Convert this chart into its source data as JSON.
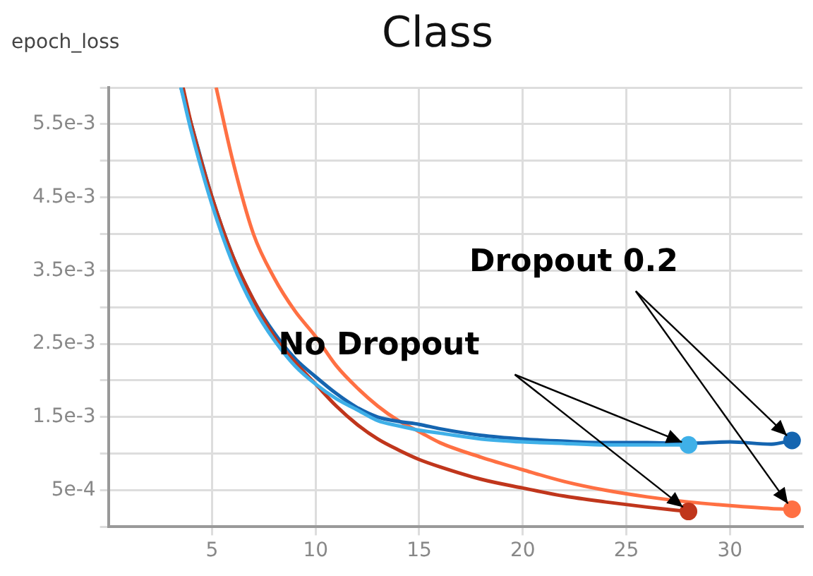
{
  "chart_data": {
    "type": "line",
    "title": "Class",
    "ylabel": "epoch_loss",
    "xlim": [
      0,
      33.5
    ],
    "xticks": [
      5,
      10,
      15,
      20,
      25,
      30
    ],
    "ylim": [
      0,
      0.006
    ],
    "yticks": [
      {
        "value": 0,
        "label": null
      },
      {
        "value": 0.0005,
        "label": "5e-4"
      },
      {
        "value": 0.001,
        "label": null
      },
      {
        "value": 0.0015,
        "label": "1.5e-3"
      },
      {
        "value": 0.002,
        "label": null
      },
      {
        "value": 0.0025,
        "label": "2.5e-3"
      },
      {
        "value": 0.003,
        "label": null
      },
      {
        "value": 0.0035,
        "label": "3.5e-3"
      },
      {
        "value": 0.004,
        "label": null
      },
      {
        "value": 0.0045,
        "label": "4.5e-3"
      },
      {
        "value": 0.005,
        "label": null
      },
      {
        "value": 0.0055,
        "label": "5.5e-3"
      },
      {
        "value": 0.006,
        "label": null
      }
    ],
    "grid": true,
    "legend": false,
    "annotations": [
      {
        "text": "No Dropout",
        "x": 28,
        "y": 0.00112
      },
      {
        "text": "Dropout 0.2",
        "x": 33,
        "y": 0.00118
      }
    ],
    "series": [
      {
        "color": "#3fb0e8",
        "x": [
          3.5,
          4,
          5,
          6,
          7,
          8,
          9,
          10,
          11,
          12,
          13,
          14,
          15,
          16,
          18,
          20,
          22,
          24,
          26,
          28
        ],
        "values": [
          0.006,
          0.0054,
          0.0044,
          0.0036,
          0.003,
          0.00255,
          0.0022,
          0.00195,
          0.00175,
          0.0016,
          0.00145,
          0.00138,
          0.00132,
          0.00128,
          0.0012,
          0.00116,
          0.00114,
          0.00112,
          0.00112,
          0.00112
        ]
      },
      {
        "color": "#c0361c",
        "x": [
          3.6,
          4,
          5,
          6,
          7,
          8,
          9,
          10,
          11,
          12,
          13,
          14,
          15,
          16,
          18,
          20,
          22,
          24,
          26,
          28
        ],
        "values": [
          0.006,
          0.0055,
          0.0045,
          0.0037,
          0.0031,
          0.0026,
          0.00225,
          0.00195,
          0.00165,
          0.0014,
          0.0012,
          0.00105,
          0.00092,
          0.00082,
          0.00065,
          0.00053,
          0.00042,
          0.00034,
          0.00027,
          0.00021
        ]
      },
      {
        "color": "#1565b0",
        "x": [
          3.5,
          4,
          5,
          6,
          7,
          8,
          9,
          10,
          11,
          12,
          13,
          14,
          15,
          16,
          18,
          20,
          22,
          24,
          26,
          28,
          30,
          32,
          33
        ],
        "values": [
          0.006,
          0.0055,
          0.0045,
          0.0037,
          0.0031,
          0.00265,
          0.0023,
          0.00205,
          0.00182,
          0.00163,
          0.0015,
          0.00144,
          0.0014,
          0.00134,
          0.00125,
          0.0012,
          0.00117,
          0.00115,
          0.00115,
          0.00114,
          0.00116,
          0.00113,
          0.00118
        ]
      },
      {
        "color": "#ff7043",
        "x": [
          5.2,
          6,
          7,
          8,
          9,
          10,
          11,
          12,
          13,
          14,
          15,
          16,
          18,
          20,
          22,
          24,
          26,
          28,
          30,
          32,
          33
        ],
        "values": [
          0.006,
          0.005,
          0.004,
          0.0034,
          0.00295,
          0.0026,
          0.0022,
          0.0019,
          0.00165,
          0.00145,
          0.0013,
          0.00115,
          0.00095,
          0.00078,
          0.00062,
          0.0005,
          0.00041,
          0.00034,
          0.00029,
          0.00025,
          0.00024
        ]
      }
    ]
  }
}
